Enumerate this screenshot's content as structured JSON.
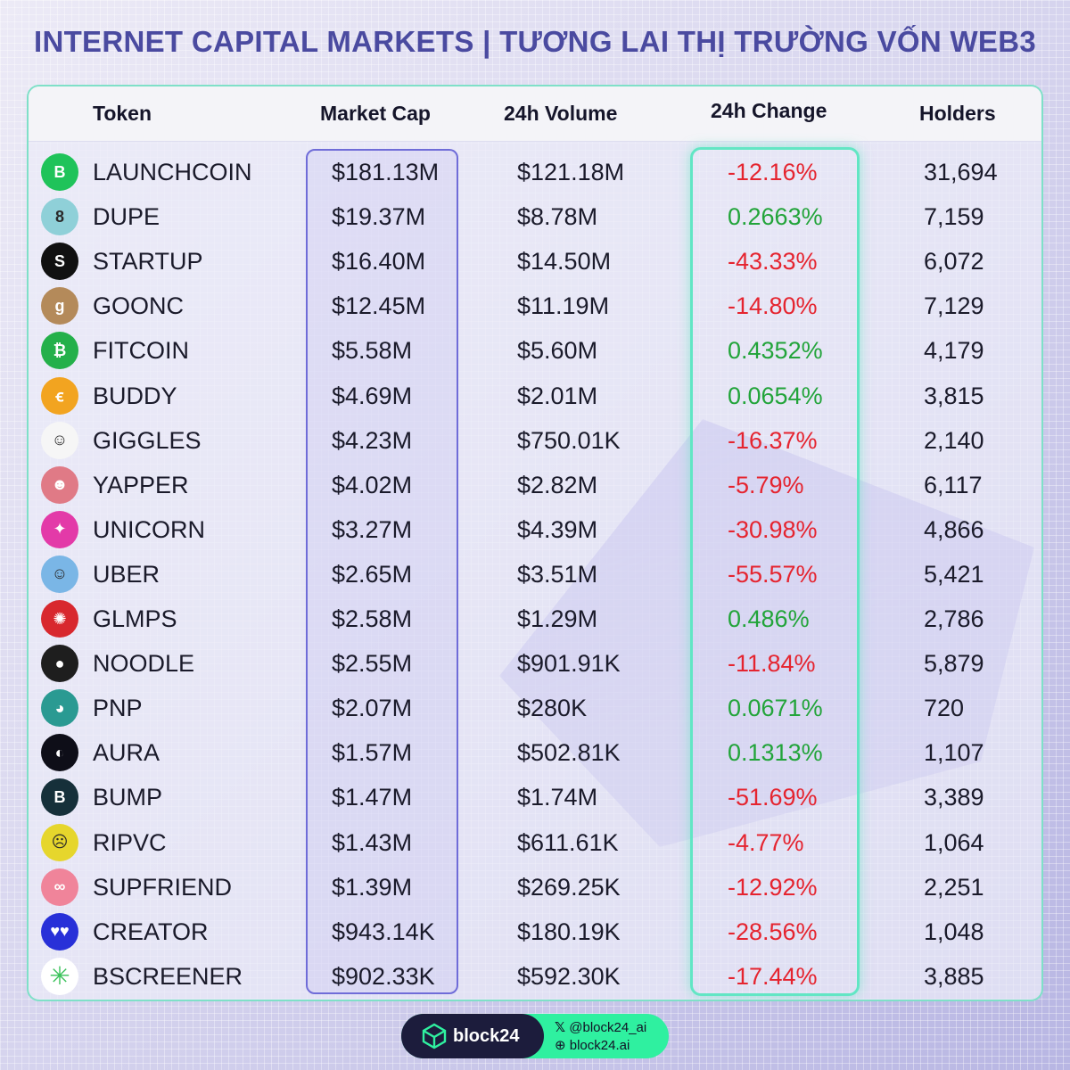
{
  "title": "INTERNET CAPITAL MARKETS | TƯƠNG LAI THỊ TRƯỜNG VỐN WEB3",
  "headers": {
    "token": "Token",
    "market_cap": "Market Cap",
    "volume": "24h Volume",
    "change": "24h Change",
    "holders": "Holders"
  },
  "rows": [
    {
      "token": "LAUNCHCOIN",
      "market_cap": "$181.13M",
      "volume": "$121.18M",
      "change": "-12.16%",
      "holders": "31,694",
      "direction": "down",
      "logo_icon": "launchcoin-icon",
      "logo_color": "#1fc35a",
      "logo_glyph": "B"
    },
    {
      "token": "DUPE",
      "market_cap": "$19.37M",
      "volume": "$8.78M",
      "change": "0.2663%",
      "holders": "7,159",
      "direction": "up",
      "logo_icon": "dupe-icon",
      "logo_color": "#8fd0d8",
      "logo_glyph": "8"
    },
    {
      "token": "STARTUP",
      "market_cap": "$16.40M",
      "volume": "$14.50M",
      "change": "-43.33%",
      "holders": "6,072",
      "direction": "down",
      "logo_icon": "startup-icon",
      "logo_color": "#111111",
      "logo_glyph": "S"
    },
    {
      "token": "GOONC",
      "market_cap": "$12.45M",
      "volume": "$11.19M",
      "change": "-14.80%",
      "holders": "7,129",
      "direction": "down",
      "logo_icon": "goonc-icon",
      "logo_color": "#b48a5a",
      "logo_glyph": "g"
    },
    {
      "token": "FITCOIN",
      "market_cap": "$5.58M",
      "volume": "$5.60M",
      "change": "0.4352%",
      "holders": "4,179",
      "direction": "up",
      "logo_icon": "fitcoin-icon",
      "logo_color": "#24b04a",
      "logo_glyph": "₿"
    },
    {
      "token": "BUDDY",
      "market_cap": "$4.69M",
      "volume": "$2.01M",
      "change": "0.0654%",
      "holders": "3,815",
      "direction": "up",
      "logo_icon": "buddy-icon",
      "logo_color": "#f2a420",
      "logo_glyph": "ꞓ"
    },
    {
      "token": "GIGGLES",
      "market_cap": "$4.23M",
      "volume": "$750.01K",
      "change": "-16.37%",
      "holders": "2,140",
      "direction": "down",
      "logo_icon": "giggles-icon",
      "logo_color": "#f6f6f6",
      "logo_glyph": "☺"
    },
    {
      "token": "YAPPER",
      "market_cap": "$4.02M",
      "volume": "$2.82M",
      "change": "-5.79%",
      "holders": "6,117",
      "direction": "down",
      "logo_icon": "yapper-icon",
      "logo_color": "#e07a86",
      "logo_glyph": "☻"
    },
    {
      "token": "UNICORN",
      "market_cap": "$3.27M",
      "volume": "$4.39M",
      "change": "-30.98%",
      "holders": "4,866",
      "direction": "down",
      "logo_icon": "unicorn-icon",
      "logo_color": "#e33aa8",
      "logo_glyph": "✦"
    },
    {
      "token": "UBER",
      "market_cap": "$2.65M",
      "volume": "$3.51M",
      "change": "-55.57%",
      "holders": "5,421",
      "direction": "down",
      "logo_icon": "uber-icon",
      "logo_color": "#7ab6e6",
      "logo_glyph": "☺"
    },
    {
      "token": "GLMPS",
      "market_cap": "$2.58M",
      "volume": "$1.29M",
      "change": "0.486%",
      "holders": "2,786",
      "direction": "up",
      "logo_icon": "glmps-icon",
      "logo_color": "#d8282e",
      "logo_glyph": "✺"
    },
    {
      "token": "NOODLE",
      "market_cap": "$2.55M",
      "volume": "$901.91K",
      "change": "-11.84%",
      "holders": "5,879",
      "direction": "down",
      "logo_icon": "noodle-icon",
      "logo_color": "#1e1e1e",
      "logo_glyph": "●"
    },
    {
      "token": "PNP",
      "market_cap": "$2.07M",
      "volume": "$280K",
      "change": "0.0671%",
      "holders": "720",
      "direction": "up",
      "logo_icon": "pnp-icon",
      "logo_color": "#2a9a92",
      "logo_glyph": "◕"
    },
    {
      "token": "AURA",
      "market_cap": "$1.57M",
      "volume": "$502.81K",
      "change": "0.1313%",
      "holders": "1,107",
      "direction": "up",
      "logo_icon": "aura-icon",
      "logo_color": "#0e0e18",
      "logo_glyph": "◐"
    },
    {
      "token": "BUMP",
      "market_cap": "$1.47M",
      "volume": "$1.74M",
      "change": "-51.69%",
      "holders": "3,389",
      "direction": "down",
      "logo_icon": "bump-icon",
      "logo_color": "#16303a",
      "logo_glyph": "B"
    },
    {
      "token": "RIPVC",
      "market_cap": "$1.43M",
      "volume": "$611.61K",
      "change": "-4.77%",
      "holders": "1,064",
      "direction": "down",
      "logo_icon": "ripvc-icon",
      "logo_color": "#e6d62c",
      "logo_glyph": "☹"
    },
    {
      "token": "SUPFRIEND",
      "market_cap": "$1.39M",
      "volume": "$269.25K",
      "change": "-12.92%",
      "holders": "2,251",
      "direction": "down",
      "logo_icon": "supfriend-icon",
      "logo_color": "#f0849a",
      "logo_glyph": "∞"
    },
    {
      "token": "CREATOR",
      "market_cap": "$943.14K",
      "volume": "$180.19K",
      "change": "-28.56%",
      "holders": "1,048",
      "direction": "down",
      "logo_icon": "creator-icon",
      "logo_color": "#2830d8",
      "logo_glyph": "♥♥"
    },
    {
      "token": "BSCREENER",
      "market_cap": "$902.33K",
      "volume": "$592.30K",
      "change": "-17.44%",
      "holders": "3,885",
      "direction": "down",
      "logo_icon": "bscreener-icon",
      "logo_color": "#ffffff",
      "logo_glyph": "✳"
    }
  ],
  "colors": {
    "positive": "#22a43a",
    "negative": "#e5242f"
  },
  "footer": {
    "brand": "block24",
    "twitter": "@block24_ai",
    "website": "block24.ai"
  }
}
